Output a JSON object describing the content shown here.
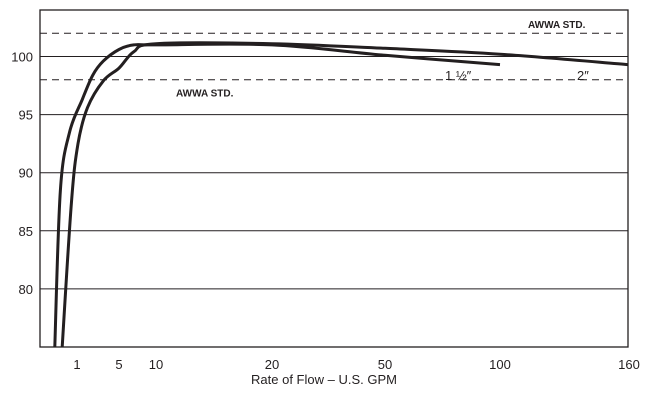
{
  "chart_data": {
    "type": "line",
    "title": "",
    "xlabel": "Rate of Flow – U.S. GPM",
    "ylabel": "",
    "x_scale": "categorical-nonlinear",
    "x_ticks": [
      "1",
      "5",
      "10",
      "20",
      "50",
      "100",
      "160"
    ],
    "y_ticks": [
      "80",
      "85",
      "90",
      "95",
      "100"
    ],
    "ylim": [
      75,
      104
    ],
    "grid": "horizontal",
    "reference_lines": [
      {
        "label": "AWWA STD.",
        "value": 102,
        "style": "dashed"
      },
      {
        "label": "AWWA STD.",
        "value": 98,
        "style": "dashed"
      }
    ],
    "series": [
      {
        "name": "1 ½″",
        "points": [
          {
            "x": 0.4,
            "y": 75
          },
          {
            "x": 0.55,
            "y": 88.5
          },
          {
            "x": 0.8,
            "y": 93.5
          },
          {
            "x": 1.5,
            "y": 96.3
          },
          {
            "x": 2.5,
            "y": 98.4
          },
          {
            "x": 3.5,
            "y": 99.6
          },
          {
            "x": 5,
            "y": 100.6
          },
          {
            "x": 7,
            "y": 101
          },
          {
            "x": 10,
            "y": 101
          },
          {
            "x": 20,
            "y": 101
          },
          {
            "x": 50,
            "y": 100.1
          },
          {
            "x": 100,
            "y": 99.3
          }
        ]
      },
      {
        "name": "2″",
        "points": [
          {
            "x": 0.6,
            "y": 75
          },
          {
            "x": 0.85,
            "y": 87.5
          },
          {
            "x": 1.1,
            "y": 92.5
          },
          {
            "x": 2,
            "y": 95.6
          },
          {
            "x": 3.5,
            "y": 97.9
          },
          {
            "x": 5,
            "y": 99
          },
          {
            "x": 7,
            "y": 100.4
          },
          {
            "x": 10,
            "y": 101.1
          },
          {
            "x": 20,
            "y": 101.1
          },
          {
            "x": 50,
            "y": 100.7
          },
          {
            "x": 100,
            "y": 100.2
          },
          {
            "x": 160,
            "y": 99.3
          }
        ]
      }
    ],
    "series_labels": [
      {
        "text": "1 ½″",
        "x": 50,
        "y": 99
      },
      {
        "text": "2″",
        "x": 100,
        "y": 99
      }
    ]
  }
}
